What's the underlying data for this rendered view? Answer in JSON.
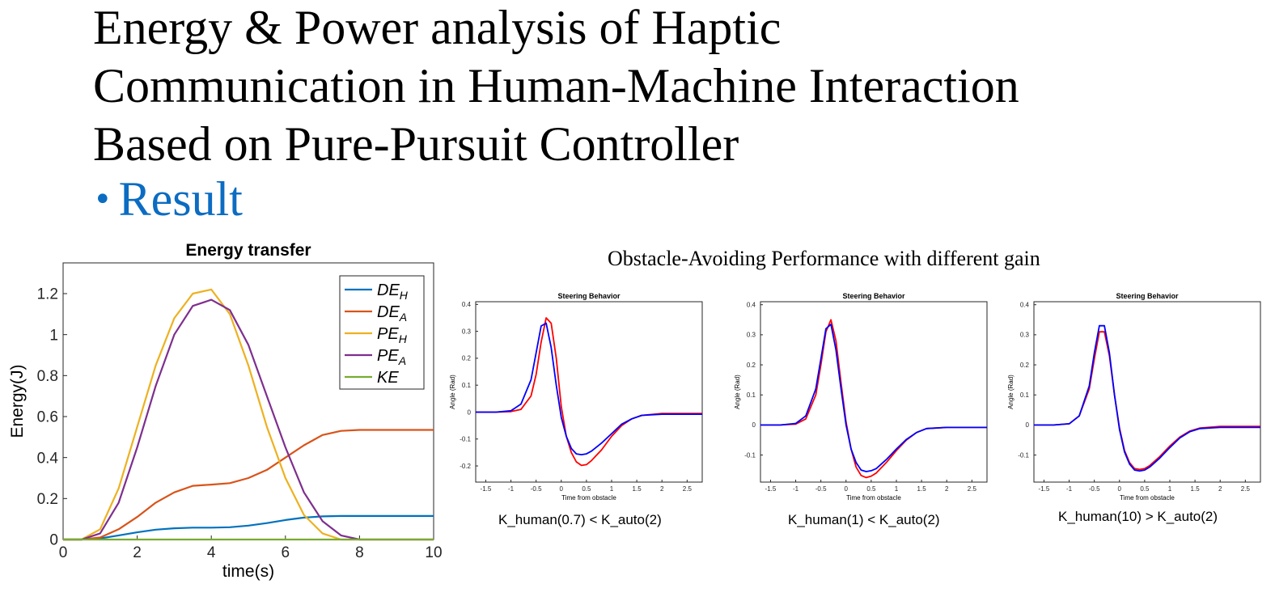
{
  "slide": {
    "title_lines": [
      "Energy & Power analysis of Haptic",
      "Communication in Human-Machine Interaction",
      "Based on Pure-Pursuit Controller"
    ],
    "bullet": "Result",
    "bullet_color": "#0b6cc2",
    "right_heading": "Obstacle-Avoiding Performance with different gain"
  },
  "chart_data": [
    {
      "type": "line",
      "title": "Energy transfer",
      "xlabel": "time(s)",
      "ylabel": "Energy(J)",
      "xlim": [
        0,
        10
      ],
      "ylim": [
        0,
        1.35
      ],
      "xticks": [
        0,
        2,
        4,
        6,
        8,
        10
      ],
      "yticks": [
        0,
        0.2,
        0.4,
        0.6,
        0.8,
        1,
        1.2
      ],
      "legend_position": "top-right",
      "x": [
        0,
        0.5,
        1,
        1.5,
        2,
        2.5,
        3,
        3.5,
        4,
        4.5,
        5,
        5.5,
        6,
        6.5,
        7,
        7.5,
        8,
        8.5,
        9,
        9.5,
        10
      ],
      "series": [
        {
          "name": "DE_H",
          "color": "#0072bd",
          "values": [
            0,
            0,
            0.005,
            0.02,
            0.035,
            0.048,
            0.055,
            0.058,
            0.058,
            0.06,
            0.068,
            0.08,
            0.095,
            0.107,
            0.113,
            0.115,
            0.115,
            0.115,
            0.115,
            0.115,
            0.115
          ]
        },
        {
          "name": "DE_A",
          "color": "#d95319",
          "values": [
            0,
            0,
            0.01,
            0.05,
            0.11,
            0.18,
            0.23,
            0.262,
            0.268,
            0.275,
            0.3,
            0.34,
            0.4,
            0.46,
            0.51,
            0.53,
            0.535,
            0.535,
            0.535,
            0.535,
            0.535
          ]
        },
        {
          "name": "PE_H",
          "color": "#edb120",
          "values": [
            0,
            0,
            0.05,
            0.25,
            0.55,
            0.85,
            1.08,
            1.2,
            1.22,
            1.1,
            0.85,
            0.55,
            0.3,
            0.12,
            0.03,
            0,
            0,
            0,
            0,
            0,
            0
          ]
        },
        {
          "name": "PE_A",
          "color": "#7e2f8e",
          "values": [
            0,
            0,
            0.03,
            0.18,
            0.45,
            0.75,
            1.0,
            1.14,
            1.17,
            1.12,
            0.95,
            0.7,
            0.45,
            0.23,
            0.09,
            0.02,
            0,
            0,
            0,
            0,
            0
          ]
        },
        {
          "name": "KE",
          "color": "#77ac30",
          "values": [
            0,
            0,
            0,
            0,
            0,
            0,
            0,
            0,
            0,
            0,
            0,
            0,
            0,
            0,
            0,
            0,
            0,
            0,
            0,
            0,
            0
          ]
        }
      ]
    },
    {
      "type": "line",
      "title": "Steering Behavior",
      "xlabel": "Time from obstacle",
      "ylabel": "Angle (Rad)",
      "caption": "K_human(0.7) < K_auto(2)",
      "xlim": [
        -1.7,
        2.8
      ],
      "ylim": [
        -0.26,
        0.41
      ],
      "xticks": [
        -1.5,
        -1,
        -0.5,
        0,
        0.5,
        1,
        1.5,
        2,
        2.5
      ],
      "yticks": [
        -0.2,
        -0.1,
        0,
        0.1,
        0.2,
        0.3,
        0.4
      ],
      "x": [
        -1.7,
        -1.3,
        -1.0,
        -0.8,
        -0.6,
        -0.5,
        -0.4,
        -0.3,
        -0.2,
        -0.1,
        0,
        0.1,
        0.2,
        0.3,
        0.4,
        0.5,
        0.6,
        0.8,
        1.0,
        1.2,
        1.4,
        1.6,
        2.0,
        2.4,
        2.8
      ],
      "series": [
        {
          "color": "#ff0000",
          "values": [
            0,
            0,
            0.002,
            0.01,
            0.06,
            0.14,
            0.26,
            0.35,
            0.33,
            0.2,
            0.02,
            -0.09,
            -0.15,
            -0.185,
            -0.198,
            -0.195,
            -0.18,
            -0.14,
            -0.09,
            -0.05,
            -0.025,
            -0.012,
            -0.005,
            -0.005,
            -0.005
          ]
        },
        {
          "color": "#0000ff",
          "values": [
            0,
            0,
            0.005,
            0.03,
            0.12,
            0.22,
            0.32,
            0.33,
            0.24,
            0.1,
            -0.02,
            -0.09,
            -0.135,
            -0.155,
            -0.158,
            -0.155,
            -0.145,
            -0.115,
            -0.08,
            -0.045,
            -0.025,
            -0.012,
            -0.008,
            -0.008,
            -0.008
          ]
        }
      ]
    },
    {
      "type": "line",
      "title": "Steering Behavior",
      "xlabel": "Time from obstacle",
      "ylabel": "Angle (Rad)",
      "caption": "K_human(1) < K_auto(2)",
      "xlim": [
        -1.7,
        2.8
      ],
      "ylim": [
        -0.19,
        0.41
      ],
      "xticks": [
        -1.5,
        -1,
        -0.5,
        0,
        0.5,
        1,
        1.5,
        2,
        2.5
      ],
      "yticks": [
        -0.1,
        0,
        0.1,
        0.2,
        0.3,
        0.4
      ],
      "x": [
        -1.7,
        -1.3,
        -1.0,
        -0.8,
        -0.6,
        -0.5,
        -0.4,
        -0.3,
        -0.2,
        -0.1,
        0,
        0.1,
        0.2,
        0.3,
        0.4,
        0.5,
        0.6,
        0.8,
        1.0,
        1.2,
        1.4,
        1.6,
        2.0,
        2.4,
        2.8
      ],
      "series": [
        {
          "color": "#ff0000",
          "values": [
            0,
            0,
            0.003,
            0.02,
            0.1,
            0.2,
            0.31,
            0.35,
            0.28,
            0.14,
            0.01,
            -0.08,
            -0.14,
            -0.168,
            -0.175,
            -0.17,
            -0.16,
            -0.125,
            -0.085,
            -0.05,
            -0.025,
            -0.012,
            -0.008,
            -0.008,
            -0.008
          ]
        },
        {
          "color": "#0000ff",
          "values": [
            0,
            0,
            0.005,
            0.03,
            0.12,
            0.22,
            0.32,
            0.335,
            0.25,
            0.12,
            0,
            -0.08,
            -0.125,
            -0.15,
            -0.155,
            -0.152,
            -0.145,
            -0.115,
            -0.08,
            -0.048,
            -0.025,
            -0.012,
            -0.008,
            -0.008,
            -0.008
          ]
        }
      ]
    },
    {
      "type": "line",
      "title": "Steering Behavior",
      "xlabel": "Time from obstacle",
      "ylabel": "Angle (Rad)",
      "caption": "K_human(10) > K_auto(2)",
      "xlim": [
        -1.7,
        2.8
      ],
      "ylim": [
        -0.19,
        0.41
      ],
      "xticks": [
        -1.5,
        -1,
        -0.5,
        0,
        0.5,
        1,
        1.5,
        2,
        2.5
      ],
      "yticks": [
        -0.1,
        0,
        0.1,
        0.2,
        0.3,
        0.4
      ],
      "x": [
        -1.7,
        -1.3,
        -1.0,
        -0.8,
        -0.6,
        -0.5,
        -0.4,
        -0.3,
        -0.2,
        -0.1,
        0,
        0.1,
        0.2,
        0.3,
        0.4,
        0.5,
        0.6,
        0.8,
        1.0,
        1.2,
        1.4,
        1.6,
        2.0,
        2.4,
        2.8
      ],
      "series": [
        {
          "color": "#ff0000",
          "values": [
            0,
            0,
            0.004,
            0.03,
            0.12,
            0.22,
            0.31,
            0.31,
            0.23,
            0.1,
            -0.01,
            -0.085,
            -0.125,
            -0.145,
            -0.148,
            -0.145,
            -0.135,
            -0.105,
            -0.07,
            -0.04,
            -0.02,
            -0.01,
            -0.005,
            -0.005,
            -0.005
          ]
        },
        {
          "color": "#0000ff",
          "values": [
            0,
            0,
            0.004,
            0.03,
            0.13,
            0.24,
            0.33,
            0.33,
            0.24,
            0.1,
            -0.015,
            -0.09,
            -0.13,
            -0.15,
            -0.153,
            -0.15,
            -0.14,
            -0.11,
            -0.075,
            -0.043,
            -0.022,
            -0.012,
            -0.008,
            -0.008,
            -0.008
          ]
        }
      ]
    }
  ]
}
